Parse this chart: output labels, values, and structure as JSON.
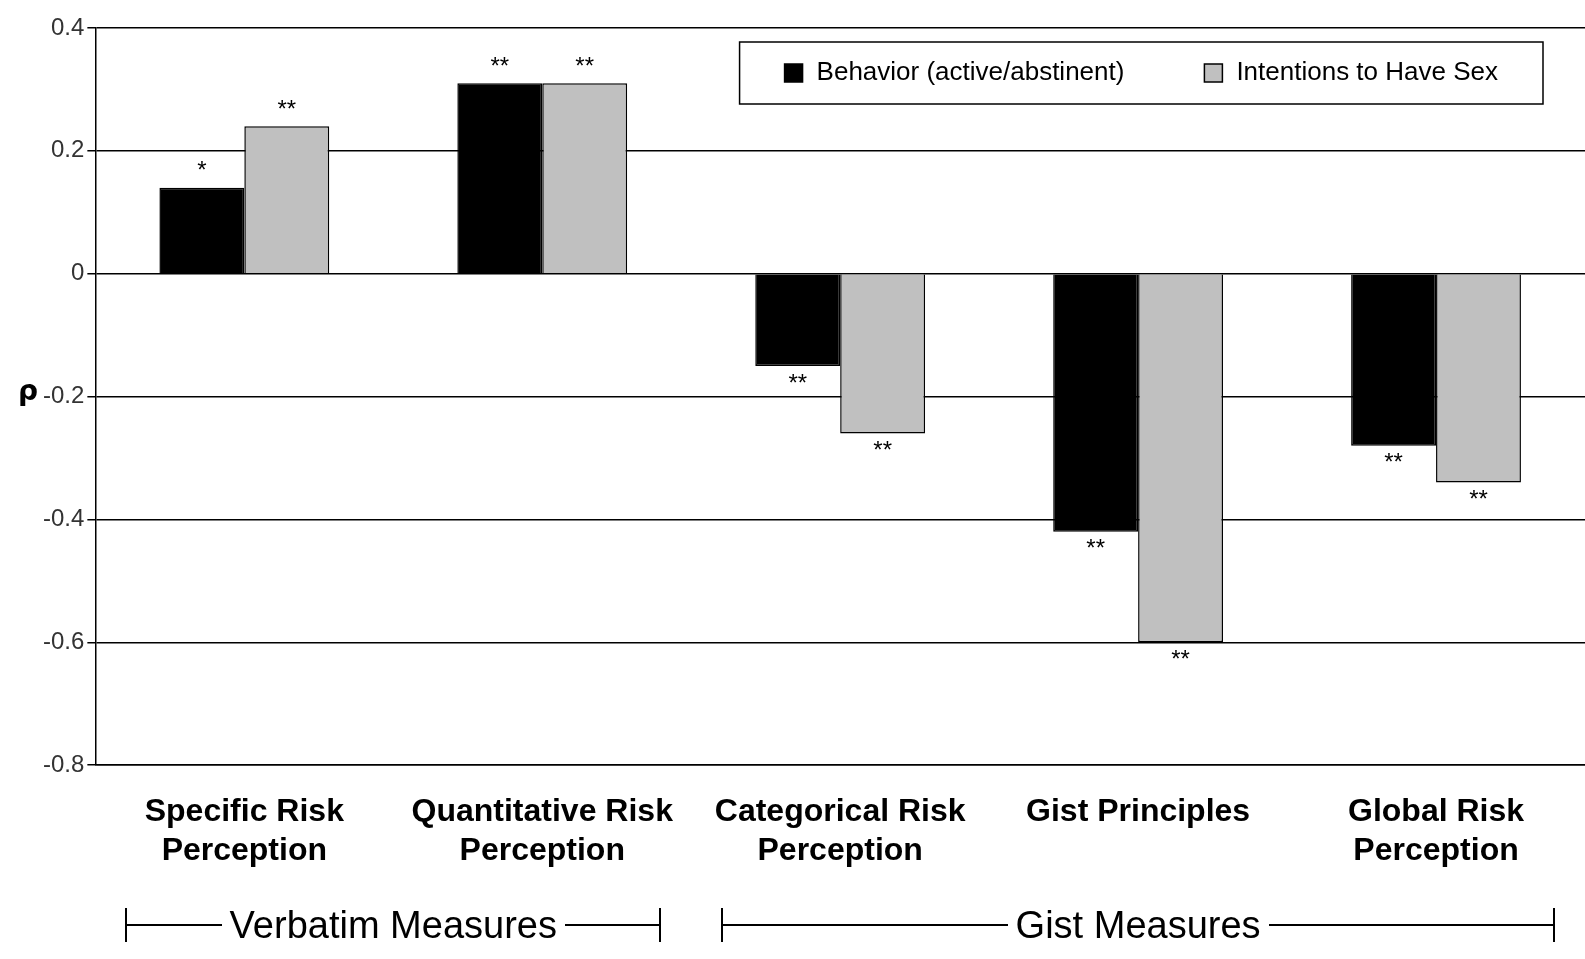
{
  "chart_data": {
    "type": "bar",
    "ylabel": "ρ",
    "categories": [
      "Specific Risk Perception",
      "Quantitative Risk Perception",
      "Categorical Risk Perception",
      "Gist Principles",
      "Global Risk Perception"
    ],
    "series": [
      {
        "name": "Behavior (active/abstinent)",
        "color": "#000000",
        "values": [
          0.14,
          0.31,
          -0.15,
          -0.42,
          -0.28
        ],
        "value_labels": [
          "*",
          "**",
          "**",
          "**",
          "**"
        ]
      },
      {
        "name": "Intentions to Have Sex",
        "color": "#c0c0c0",
        "values": [
          0.24,
          0.31,
          -0.26,
          -0.6,
          -0.34
        ],
        "value_labels": [
          "**",
          "**",
          "**",
          "**",
          "**"
        ]
      }
    ],
    "ylim": [
      -0.8,
      0.4
    ],
    "yticks": [
      0.4,
      0.2,
      0,
      -0.2,
      -0.4,
      -0.6,
      -0.8
    ],
    "grid": "y",
    "legend": "top right",
    "annotations": [
      "Verbatim Measures",
      "Gist Measures"
    ]
  }
}
